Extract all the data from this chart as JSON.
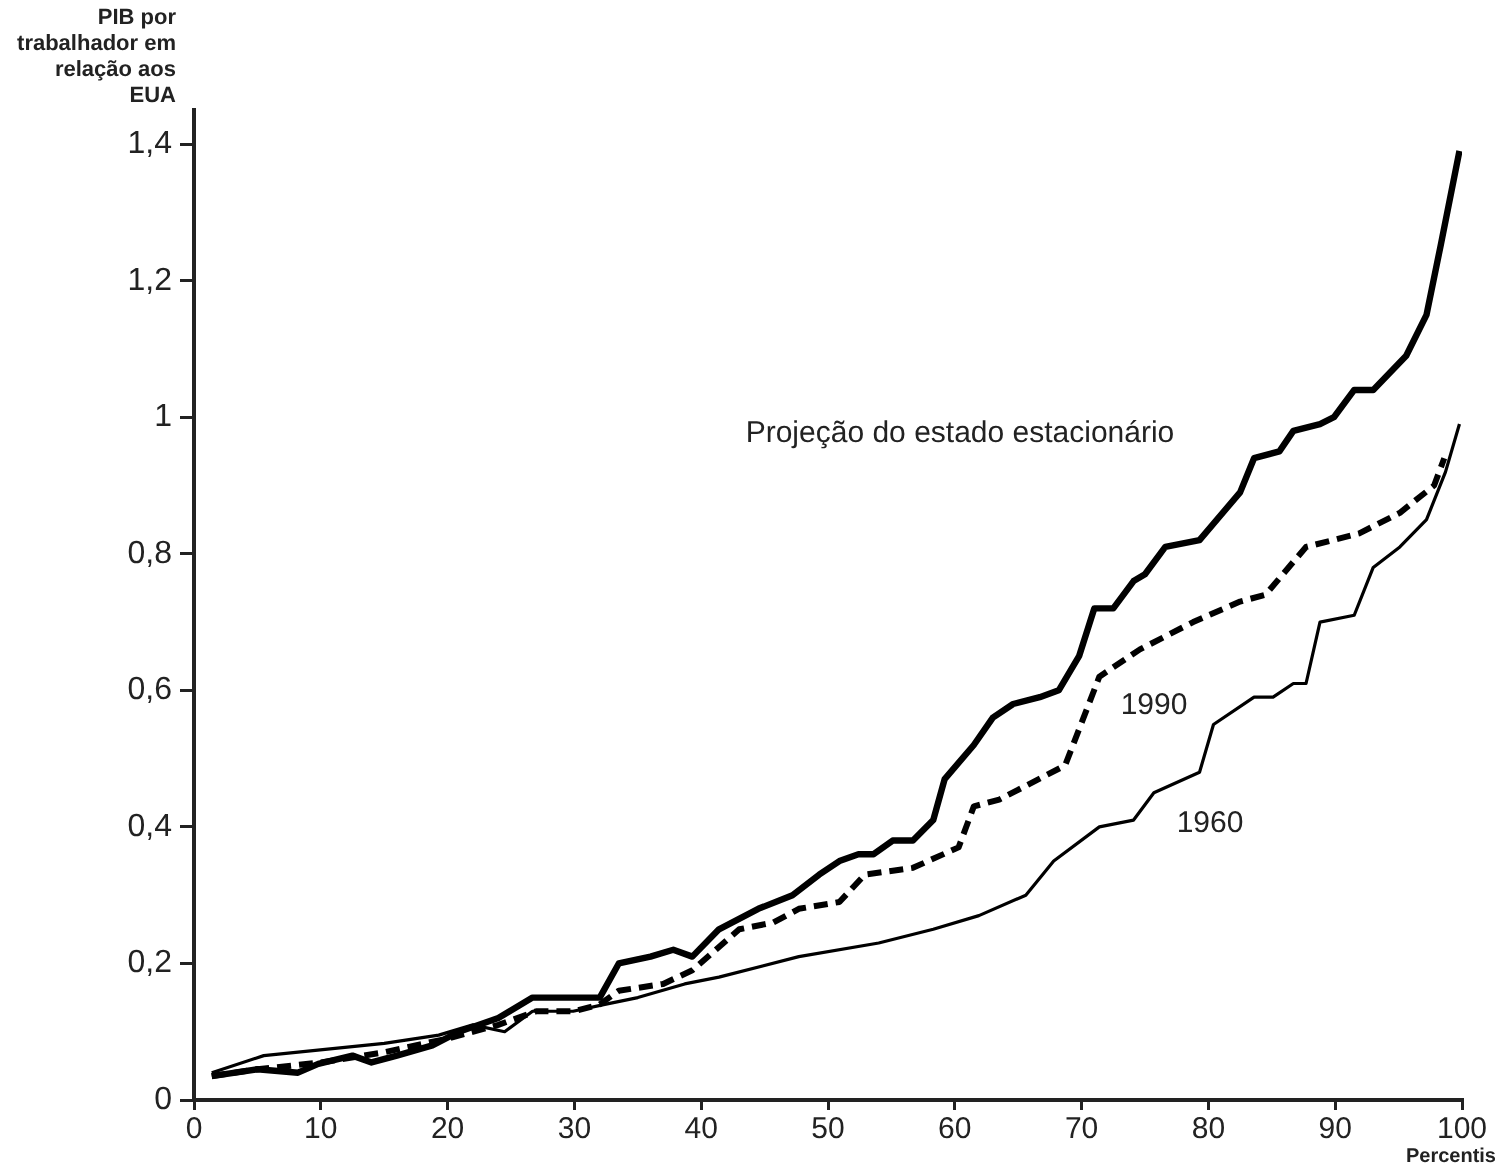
{
  "chart_data": {
    "type": "line",
    "xlabel": "Percentis",
    "ylabel": "PIB por trabalhador em relação aos EUA",
    "xlim": [
      0,
      100
    ],
    "ylim": [
      0,
      1.45
    ],
    "xticks": [
      0,
      10,
      20,
      30,
      40,
      50,
      60,
      70,
      80,
      90,
      100
    ],
    "yticks": [
      0,
      {
        "value": 0.2,
        "label": "0,2"
      },
      {
        "value": 0.4,
        "label": "0,4"
      },
      {
        "value": 0.6,
        "label": "0,6"
      },
      {
        "value": 0.8,
        "label": "0,8"
      },
      1,
      {
        "value": 1.2,
        "label": "1,2"
      },
      {
        "value": 1.4,
        "label": "1,4"
      }
    ],
    "grid": false,
    "legend": false,
    "marker": "none",
    "series": [
      {
        "name": "Projeção do estado estacionário",
        "color": "#000000",
        "line_style": "solid",
        "x": [
          1.4,
          5,
          8.2,
          9.8,
          12.5,
          14,
          16,
          18.8,
          20.9,
          24,
          26.7,
          30.8,
          32,
          33.5,
          36,
          37.8,
          39.3,
          41.4,
          44.5,
          47.2,
          49.3,
          50.9,
          52.4,
          53.6,
          55.1,
          56.7,
          58.3,
          59.2,
          61.5,
          63,
          64.6,
          66.7,
          68.2,
          69.8,
          71,
          72.5,
          74.1,
          75,
          76.6,
          79.3,
          82.5,
          83.6,
          85.6,
          86.7,
          88.8,
          89.9,
          91.5,
          93,
          95.6,
          97.2,
          98.3,
          99.8
        ],
        "values": [
          0.035,
          0.045,
          0.04,
          0.053,
          0.065,
          0.055,
          0.065,
          0.08,
          0.1,
          0.12,
          0.15,
          0.15,
          0.15,
          0.2,
          0.21,
          0.22,
          0.21,
          0.25,
          0.28,
          0.3,
          0.33,
          0.35,
          0.36,
          0.36,
          0.38,
          0.38,
          0.41,
          0.47,
          0.52,
          0.56,
          0.58,
          0.59,
          0.6,
          0.65,
          0.72,
          0.72,
          0.76,
          0.77,
          0.81,
          0.82,
          0.89,
          0.94,
          0.95,
          0.98,
          0.99,
          1.0,
          1.04,
          1.04,
          1.09,
          1.15,
          1.25,
          1.39
        ]
      },
      {
        "name": "1990",
        "color": "#000000",
        "line_style": "dashed",
        "x": [
          1.4,
          5,
          10,
          15,
          20,
          24,
          27,
          30,
          32,
          33.5,
          37,
          39.3,
          43,
          45.7,
          47.7,
          50.9,
          52.9,
          56.7,
          60.3,
          61.5,
          63.5,
          68.7,
          71.4,
          74.6,
          78.8,
          82.5,
          84.5,
          87.7,
          91.9,
          95.1,
          97.8,
          98.6
        ],
        "values": [
          0.035,
          0.045,
          0.055,
          0.07,
          0.09,
          0.11,
          0.13,
          0.13,
          0.14,
          0.16,
          0.17,
          0.19,
          0.25,
          0.26,
          0.28,
          0.29,
          0.33,
          0.34,
          0.37,
          0.43,
          0.44,
          0.49,
          0.62,
          0.66,
          0.7,
          0.73,
          0.74,
          0.81,
          0.83,
          0.86,
          0.9,
          0.94
        ]
      },
      {
        "name": "1960",
        "color": "#000000",
        "line_style": "solid",
        "x": [
          1.4,
          5.5,
          15,
          19.3,
          22,
          24.5,
          26.7,
          29.9,
          32.4,
          35,
          38.7,
          41.4,
          47.7,
          54,
          58.3,
          61.9,
          65.6,
          67.8,
          71.4,
          74.1,
          75.7,
          79.3,
          80.4,
          83.6,
          85.1,
          86.7,
          87.7,
          88.8,
          91.5,
          93,
          95.1,
          97.2,
          98.7,
          99.8
        ],
        "values": [
          0.04,
          0.065,
          0.083,
          0.095,
          0.11,
          0.1,
          0.13,
          0.13,
          0.14,
          0.15,
          0.17,
          0.18,
          0.21,
          0.23,
          0.25,
          0.27,
          0.3,
          0.35,
          0.4,
          0.41,
          0.45,
          0.48,
          0.55,
          0.59,
          0.59,
          0.61,
          0.61,
          0.7,
          0.71,
          0.78,
          0.81,
          0.85,
          0.92,
          0.99
        ]
      }
    ]
  }
}
